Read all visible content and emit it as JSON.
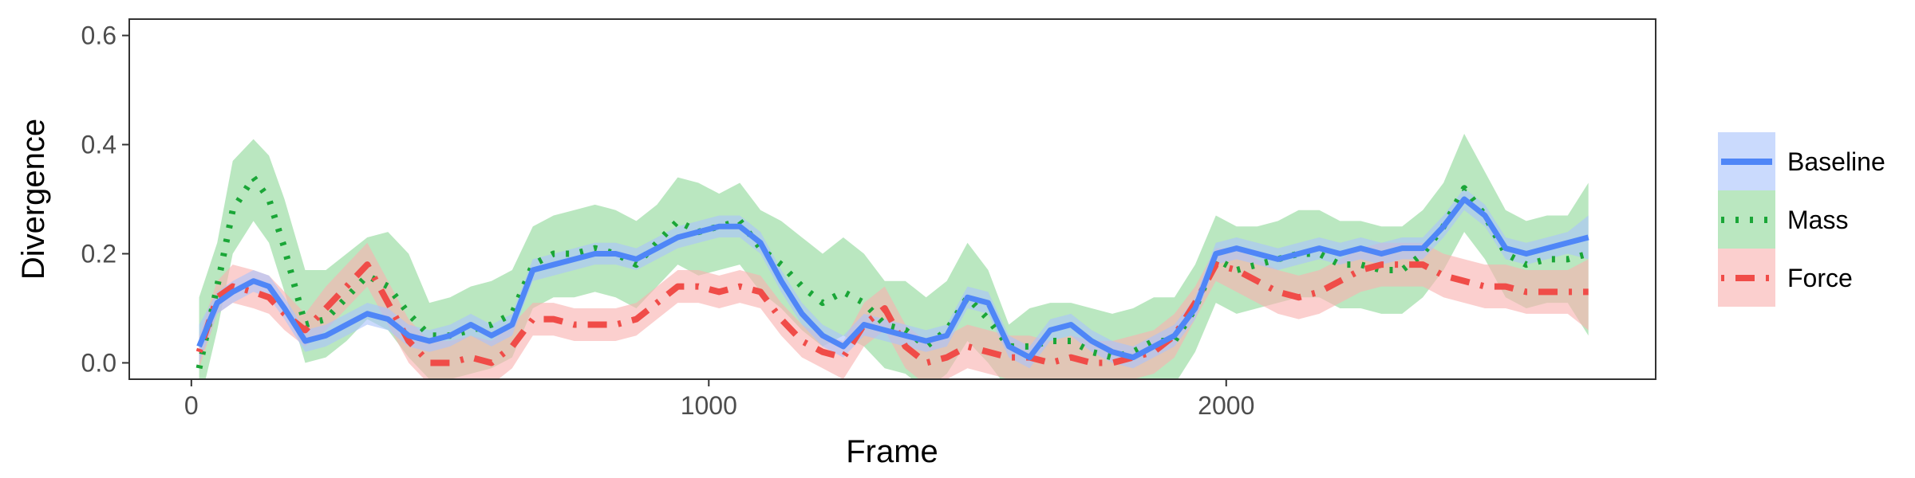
{
  "chart_data": {
    "type": "line",
    "xlabel": "Frame",
    "ylabel": "Divergence",
    "xlim": [
      -120,
      2830
    ],
    "ylim": [
      -0.03,
      0.63
    ],
    "x_ticks": [
      {
        "value": 0,
        "label": "0"
      },
      {
        "value": 1000,
        "label": "1000"
      },
      {
        "value": 2000,
        "label": "2000"
      }
    ],
    "y_ticks": [
      {
        "value": 0.0,
        "label": "0.0"
      },
      {
        "value": 0.2,
        "label": "0.2"
      },
      {
        "value": 0.4,
        "label": "0.4"
      },
      {
        "value": 0.6,
        "label": "0.6"
      }
    ],
    "grid": false,
    "legend_position": "right",
    "x": [
      15,
      50,
      80,
      120,
      150,
      180,
      220,
      260,
      300,
      340,
      380,
      420,
      460,
      500,
      540,
      580,
      620,
      660,
      700,
      740,
      780,
      820,
      860,
      900,
      940,
      980,
      1020,
      1060,
      1100,
      1140,
      1180,
      1220,
      1260,
      1300,
      1340,
      1380,
      1420,
      1460,
      1500,
      1540,
      1580,
      1620,
      1660,
      1700,
      1740,
      1780,
      1820,
      1860,
      1900,
      1940,
      1980,
      2020,
      2060,
      2100,
      2140,
      2180,
      2220,
      2260,
      2300,
      2340,
      2380,
      2420,
      2460,
      2500,
      2540,
      2580,
      2620,
      2660,
      2700
    ],
    "series": [
      {
        "name": "Baseline",
        "color": "#4f86f7",
        "fill": "#a9c4fb",
        "dash": "solid",
        "values": [
          0.03,
          0.11,
          0.13,
          0.15,
          0.14,
          0.1,
          0.04,
          0.05,
          0.07,
          0.09,
          0.08,
          0.05,
          0.04,
          0.05,
          0.07,
          0.05,
          0.07,
          0.17,
          0.18,
          0.19,
          0.2,
          0.2,
          0.19,
          0.21,
          0.23,
          0.24,
          0.25,
          0.25,
          0.22,
          0.15,
          0.09,
          0.05,
          0.03,
          0.07,
          0.06,
          0.05,
          0.04,
          0.05,
          0.12,
          0.11,
          0.03,
          0.01,
          0.06,
          0.07,
          0.04,
          0.02,
          0.01,
          0.03,
          0.05,
          0.1,
          0.2,
          0.21,
          0.2,
          0.19,
          0.2,
          0.21,
          0.2,
          0.21,
          0.2,
          0.21,
          0.21,
          0.25,
          0.3,
          0.27,
          0.21,
          0.2,
          0.21,
          0.22,
          0.23
        ],
        "lower": [
          0.0,
          0.09,
          0.11,
          0.13,
          0.12,
          0.08,
          0.02,
          0.03,
          0.05,
          0.07,
          0.06,
          0.03,
          0.02,
          0.03,
          0.05,
          0.03,
          0.05,
          0.15,
          0.16,
          0.17,
          0.18,
          0.18,
          0.17,
          0.19,
          0.21,
          0.22,
          0.23,
          0.23,
          0.2,
          0.13,
          0.07,
          0.03,
          0.01,
          0.05,
          0.04,
          0.03,
          0.02,
          0.03,
          0.1,
          0.09,
          0.01,
          -0.01,
          0.04,
          0.05,
          0.02,
          0.0,
          -0.01,
          0.01,
          0.03,
          0.08,
          0.18,
          0.19,
          0.18,
          0.17,
          0.18,
          0.19,
          0.18,
          0.19,
          0.18,
          0.19,
          0.19,
          0.23,
          0.28,
          0.25,
          0.19,
          0.18,
          0.19,
          0.2,
          0.19
        ],
        "upper": [
          0.07,
          0.13,
          0.15,
          0.17,
          0.16,
          0.12,
          0.06,
          0.07,
          0.09,
          0.11,
          0.1,
          0.07,
          0.06,
          0.07,
          0.09,
          0.07,
          0.09,
          0.19,
          0.2,
          0.21,
          0.22,
          0.22,
          0.21,
          0.23,
          0.25,
          0.26,
          0.27,
          0.27,
          0.24,
          0.17,
          0.11,
          0.07,
          0.05,
          0.09,
          0.08,
          0.07,
          0.06,
          0.07,
          0.14,
          0.13,
          0.05,
          0.03,
          0.08,
          0.09,
          0.06,
          0.04,
          0.03,
          0.05,
          0.07,
          0.12,
          0.22,
          0.23,
          0.22,
          0.21,
          0.22,
          0.23,
          0.22,
          0.23,
          0.22,
          0.23,
          0.23,
          0.27,
          0.32,
          0.29,
          0.23,
          0.22,
          0.23,
          0.24,
          0.27
        ]
      },
      {
        "name": "Mass",
        "color": "#1aa637",
        "fill": "#8fd99a",
        "dash": "dotted",
        "values": [
          -0.01,
          0.14,
          0.28,
          0.34,
          0.3,
          0.21,
          0.07,
          0.08,
          0.12,
          0.16,
          0.14,
          0.09,
          0.05,
          0.05,
          0.06,
          0.07,
          0.09,
          0.18,
          0.2,
          0.2,
          0.21,
          0.2,
          0.18,
          0.22,
          0.26,
          0.24,
          0.25,
          0.26,
          0.21,
          0.18,
          0.14,
          0.11,
          0.13,
          0.11,
          0.07,
          0.06,
          0.03,
          0.06,
          0.12,
          0.08,
          0.03,
          0.03,
          0.04,
          0.04,
          0.02,
          0.01,
          0.02,
          0.04,
          0.04,
          0.1,
          0.19,
          0.17,
          0.18,
          0.19,
          0.2,
          0.2,
          0.18,
          0.18,
          0.17,
          0.17,
          0.2,
          0.25,
          0.32,
          0.27,
          0.2,
          0.18,
          0.19,
          0.19,
          0.2
        ],
        "lower": [
          -0.08,
          0.06,
          0.2,
          0.26,
          0.22,
          0.13,
          0.0,
          0.01,
          0.04,
          0.08,
          0.06,
          0.01,
          -0.03,
          -0.03,
          -0.02,
          -0.01,
          0.01,
          0.1,
          0.12,
          0.12,
          0.13,
          0.12,
          0.1,
          0.14,
          0.18,
          0.16,
          0.17,
          0.18,
          0.13,
          0.1,
          0.06,
          0.03,
          0.05,
          0.03,
          -0.01,
          -0.02,
          -0.05,
          -0.02,
          0.04,
          0.0,
          -0.05,
          -0.05,
          -0.04,
          -0.04,
          -0.06,
          -0.07,
          -0.06,
          -0.04,
          -0.04,
          0.02,
          0.11,
          0.09,
          0.1,
          0.11,
          0.12,
          0.12,
          0.1,
          0.1,
          0.09,
          0.09,
          0.12,
          0.17,
          0.24,
          0.19,
          0.12,
          0.1,
          0.11,
          0.11,
          0.05
        ],
        "upper": [
          0.12,
          0.22,
          0.37,
          0.41,
          0.38,
          0.3,
          0.17,
          0.17,
          0.2,
          0.23,
          0.24,
          0.2,
          0.11,
          0.12,
          0.14,
          0.15,
          0.17,
          0.25,
          0.27,
          0.28,
          0.29,
          0.28,
          0.26,
          0.29,
          0.34,
          0.33,
          0.31,
          0.33,
          0.28,
          0.26,
          0.23,
          0.2,
          0.23,
          0.2,
          0.15,
          0.15,
          0.12,
          0.15,
          0.22,
          0.17,
          0.07,
          0.1,
          0.11,
          0.11,
          0.1,
          0.09,
          0.1,
          0.12,
          0.12,
          0.18,
          0.27,
          0.25,
          0.25,
          0.26,
          0.28,
          0.28,
          0.26,
          0.26,
          0.25,
          0.25,
          0.28,
          0.33,
          0.42,
          0.35,
          0.28,
          0.26,
          0.27,
          0.27,
          0.33
        ]
      },
      {
        "name": "Force",
        "color": "#f04c48",
        "fill": "#f8b2b0",
        "dash": "dotdash",
        "values": [
          0.02,
          0.12,
          0.14,
          0.13,
          0.12,
          0.09,
          0.06,
          0.1,
          0.14,
          0.18,
          0.11,
          0.04,
          0.0,
          0.0,
          0.01,
          0.0,
          0.03,
          0.08,
          0.08,
          0.07,
          0.07,
          0.07,
          0.08,
          0.11,
          0.14,
          0.14,
          0.13,
          0.14,
          0.13,
          0.08,
          0.04,
          0.02,
          0.01,
          0.07,
          0.1,
          0.03,
          0.0,
          0.01,
          0.03,
          0.02,
          0.01,
          0.01,
          0.0,
          0.01,
          0.0,
          0.0,
          0.01,
          0.02,
          0.05,
          0.11,
          0.18,
          0.17,
          0.15,
          0.13,
          0.12,
          0.13,
          0.15,
          0.17,
          0.18,
          0.18,
          0.18,
          0.16,
          0.15,
          0.14,
          0.14,
          0.13,
          0.13,
          0.13,
          0.13
        ],
        "lower": [
          -0.01,
          0.09,
          0.11,
          0.1,
          0.09,
          0.06,
          0.03,
          0.06,
          0.1,
          0.14,
          0.07,
          0.0,
          -0.04,
          -0.04,
          -0.03,
          -0.04,
          -0.01,
          0.05,
          0.05,
          0.04,
          0.04,
          0.04,
          0.05,
          0.08,
          0.11,
          0.11,
          0.1,
          0.11,
          0.1,
          0.05,
          0.01,
          -0.01,
          -0.03,
          0.03,
          0.06,
          -0.01,
          -0.04,
          -0.03,
          -0.01,
          -0.02,
          -0.03,
          -0.03,
          -0.04,
          -0.03,
          -0.04,
          -0.04,
          -0.03,
          -0.02,
          0.01,
          0.08,
          0.15,
          0.13,
          0.11,
          0.09,
          0.08,
          0.09,
          0.11,
          0.13,
          0.14,
          0.14,
          0.14,
          0.12,
          0.11,
          0.1,
          0.1,
          0.09,
          0.09,
          0.09,
          0.06
        ],
        "upper": [
          0.05,
          0.15,
          0.18,
          0.17,
          0.16,
          0.13,
          0.09,
          0.14,
          0.18,
          0.22,
          0.15,
          0.08,
          0.04,
          0.04,
          0.05,
          0.04,
          0.07,
          0.11,
          0.11,
          0.1,
          0.1,
          0.1,
          0.11,
          0.14,
          0.17,
          0.17,
          0.16,
          0.17,
          0.16,
          0.11,
          0.07,
          0.05,
          0.04,
          0.11,
          0.14,
          0.07,
          0.04,
          0.05,
          0.07,
          0.06,
          0.05,
          0.05,
          0.04,
          0.05,
          0.04,
          0.04,
          0.05,
          0.06,
          0.09,
          0.14,
          0.21,
          0.21,
          0.19,
          0.17,
          0.16,
          0.17,
          0.19,
          0.21,
          0.22,
          0.22,
          0.22,
          0.2,
          0.19,
          0.18,
          0.18,
          0.17,
          0.17,
          0.17,
          0.19
        ]
      }
    ]
  }
}
